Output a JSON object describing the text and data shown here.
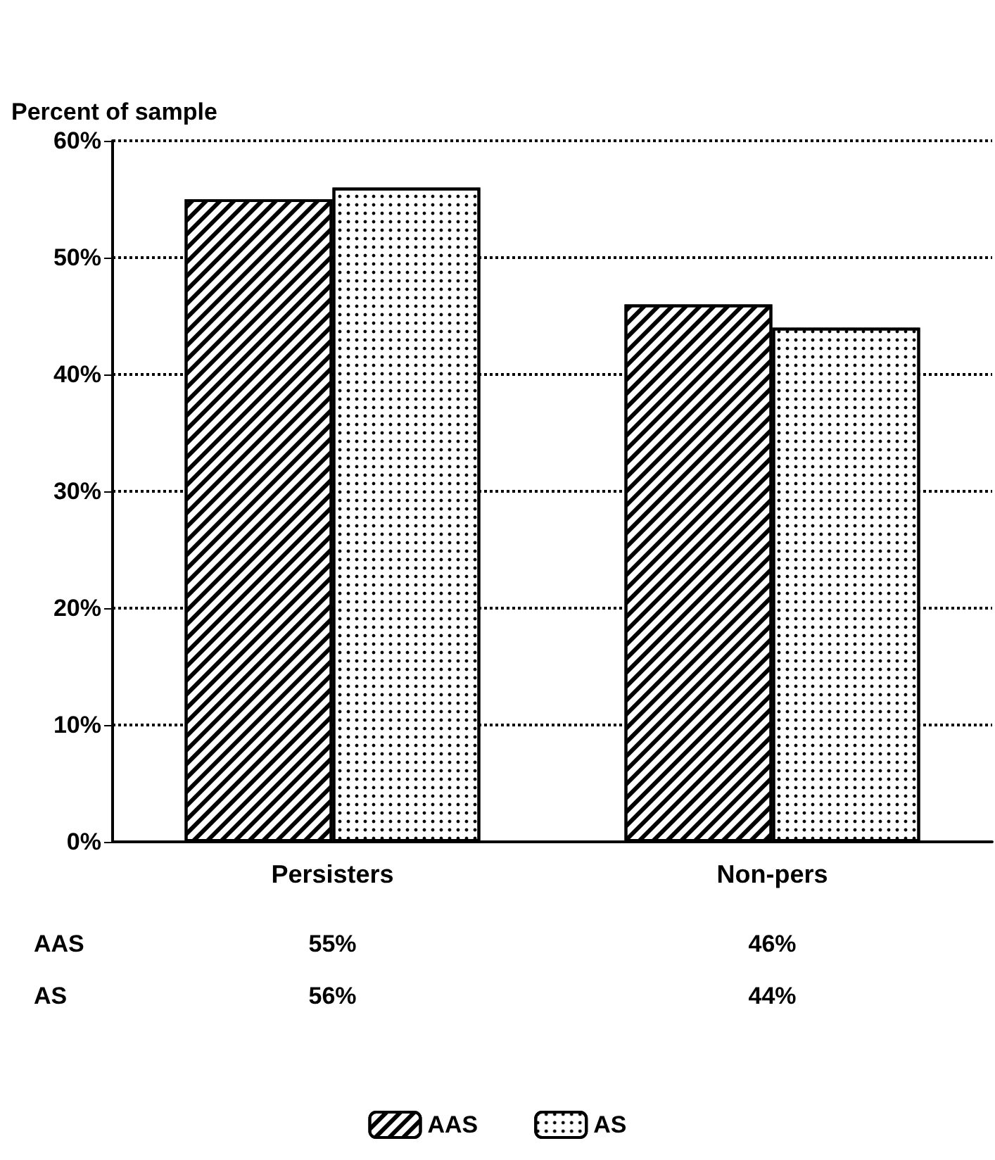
{
  "chart_data": {
    "type": "bar",
    "ylabel": "Percent of sample",
    "categories": [
      "Persisters",
      "Non-pers"
    ],
    "series": [
      {
        "name": "AAS",
        "color": "#ffffff",
        "values": [
          55,
          46
        ],
        "value_labels": [
          "55%",
          "46%"
        ]
      },
      {
        "name": "AS",
        "color": "#ffffff",
        "values": [
          56,
          44
        ],
        "value_labels": [
          "56%",
          "44%"
        ]
      }
    ],
    "ylim": [
      0,
      60
    ],
    "yticks": [
      {
        "value": 0,
        "label": "0%"
      },
      {
        "value": 10,
        "label": "10%"
      },
      {
        "value": 20,
        "label": "20%"
      },
      {
        "value": 30,
        "label": "30%"
      },
      {
        "value": 40,
        "label": "40%"
      },
      {
        "value": 50,
        "label": "50%"
      },
      {
        "value": 60,
        "label": "60%"
      }
    ],
    "grid": "y",
    "legend": "bottom"
  }
}
